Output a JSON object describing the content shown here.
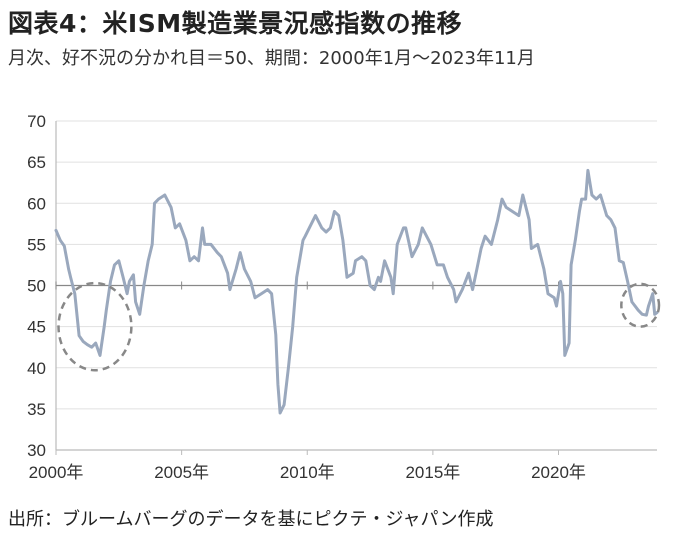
{
  "title": "図表4：米ISM製造業景況感指数の推移",
  "subtitle": "月次、好不況の分かれ目＝50、期間：2000年1月～2023年11月",
  "source": "出所：ブルームバーグのデータを基にピクテ・ジャパン作成",
  "colors": {
    "line": "#9aa8bd",
    "circle": "#888888",
    "axis": "#bbbbbb",
    "grid": "#e1e1e1"
  },
  "chart_data": {
    "type": "line",
    "ylim": [
      30,
      70
    ],
    "yticks": [
      30,
      35,
      40,
      45,
      50,
      55,
      60,
      65,
      70
    ],
    "xlim": [
      2000.0,
      2023.92
    ],
    "xticks": [
      {
        "value": 2000,
        "label": "2000年"
      },
      {
        "value": 2005,
        "label": "2005年"
      },
      {
        "value": 2010,
        "label": "2010年"
      },
      {
        "value": 2015,
        "label": "2015年"
      },
      {
        "value": 2020,
        "label": "2020年"
      }
    ],
    "reference_line": 50,
    "highlight_regions": [
      {
        "x_range": [
          2000.1,
          2003.0
        ],
        "y_range": [
          39.7,
          50.3
        ]
      },
      {
        "x_range": [
          2022.5,
          2024.0
        ],
        "y_range": [
          45.0,
          50.2
        ]
      }
    ],
    "series": [
      {
        "points": [
          [
            2000.0,
            56.7
          ],
          [
            2000.17,
            55.5
          ],
          [
            2000.33,
            54.8
          ],
          [
            2000.5,
            52.0
          ],
          [
            2000.58,
            51.0
          ],
          [
            2000.75,
            49.0
          ],
          [
            2000.92,
            43.9
          ],
          [
            2001.08,
            43.2
          ],
          [
            2001.25,
            42.8
          ],
          [
            2001.42,
            42.5
          ],
          [
            2001.58,
            43.0
          ],
          [
            2001.75,
            41.5
          ],
          [
            2001.92,
            45.0
          ],
          [
            2002.0,
            47.0
          ],
          [
            2002.17,
            50.5
          ],
          [
            2002.33,
            52.5
          ],
          [
            2002.5,
            53.0
          ],
          [
            2002.67,
            51.0
          ],
          [
            2002.83,
            49.0
          ],
          [
            2002.92,
            50.5
          ],
          [
            2003.08,
            51.3
          ],
          [
            2003.17,
            48.0
          ],
          [
            2003.33,
            46.5
          ],
          [
            2003.5,
            50.0
          ],
          [
            2003.67,
            53.0
          ],
          [
            2003.83,
            55.0
          ],
          [
            2003.92,
            60.0
          ],
          [
            2004.08,
            60.5
          ],
          [
            2004.33,
            61.0
          ],
          [
            2004.58,
            59.5
          ],
          [
            2004.75,
            57.0
          ],
          [
            2004.92,
            57.5
          ],
          [
            2005.17,
            55.5
          ],
          [
            2005.33,
            53.0
          ],
          [
            2005.5,
            53.5
          ],
          [
            2005.67,
            53.0
          ],
          [
            2005.83,
            57.0
          ],
          [
            2005.92,
            55.0
          ],
          [
            2006.17,
            55.0
          ],
          [
            2006.42,
            54.0
          ],
          [
            2006.58,
            53.5
          ],
          [
            2006.83,
            51.5
          ],
          [
            2006.92,
            49.5
          ],
          [
            2007.17,
            52.0
          ],
          [
            2007.33,
            54.0
          ],
          [
            2007.5,
            52.0
          ],
          [
            2007.75,
            50.5
          ],
          [
            2007.92,
            48.5
          ],
          [
            2008.17,
            49.0
          ],
          [
            2008.42,
            49.5
          ],
          [
            2008.58,
            49.0
          ],
          [
            2008.75,
            44.0
          ],
          [
            2008.83,
            38.0
          ],
          [
            2008.92,
            34.5
          ],
          [
            2009.08,
            35.5
          ],
          [
            2009.25,
            40.0
          ],
          [
            2009.42,
            45.0
          ],
          [
            2009.58,
            51.0
          ],
          [
            2009.83,
            55.5
          ],
          [
            2009.92,
            56.0
          ],
          [
            2010.08,
            57.0
          ],
          [
            2010.33,
            58.5
          ],
          [
            2010.58,
            57.0
          ],
          [
            2010.75,
            56.5
          ],
          [
            2010.92,
            57.0
          ],
          [
            2011.08,
            59.0
          ],
          [
            2011.25,
            58.5
          ],
          [
            2011.42,
            55.5
          ],
          [
            2011.58,
            51.0
          ],
          [
            2011.83,
            51.5
          ],
          [
            2011.92,
            53.0
          ],
          [
            2012.17,
            53.5
          ],
          [
            2012.33,
            53.0
          ],
          [
            2012.5,
            50.0
          ],
          [
            2012.67,
            49.5
          ],
          [
            2012.83,
            51.0
          ],
          [
            2012.92,
            50.5
          ],
          [
            2013.08,
            53.0
          ],
          [
            2013.33,
            51.0
          ],
          [
            2013.42,
            49.0
          ],
          [
            2013.58,
            55.0
          ],
          [
            2013.83,
            57.0
          ],
          [
            2013.92,
            57.0
          ],
          [
            2014.17,
            53.5
          ],
          [
            2014.42,
            55.0
          ],
          [
            2014.58,
            57.0
          ],
          [
            2014.75,
            56.0
          ],
          [
            2014.92,
            55.0
          ],
          [
            2015.17,
            52.5
          ],
          [
            2015.42,
            52.5
          ],
          [
            2015.58,
            51.0
          ],
          [
            2015.83,
            49.5
          ],
          [
            2015.92,
            48.0
          ],
          [
            2016.17,
            49.5
          ],
          [
            2016.42,
            51.5
          ],
          [
            2016.58,
            49.5
          ],
          [
            2016.75,
            52.0
          ],
          [
            2016.92,
            54.5
          ],
          [
            2017.08,
            56.0
          ],
          [
            2017.33,
            55.0
          ],
          [
            2017.58,
            58.0
          ],
          [
            2017.75,
            60.5
          ],
          [
            2017.92,
            59.5
          ],
          [
            2018.17,
            59.0
          ],
          [
            2018.42,
            58.5
          ],
          [
            2018.58,
            61.0
          ],
          [
            2018.83,
            58.0
          ],
          [
            2018.92,
            54.5
          ],
          [
            2019.17,
            55.0
          ],
          [
            2019.42,
            52.0
          ],
          [
            2019.58,
            49.0
          ],
          [
            2019.83,
            48.5
          ],
          [
            2019.92,
            47.5
          ],
          [
            2020.08,
            50.5
          ],
          [
            2020.17,
            49.0
          ],
          [
            2020.25,
            41.5
          ],
          [
            2020.42,
            43.0
          ],
          [
            2020.5,
            52.5
          ],
          [
            2020.67,
            55.5
          ],
          [
            2020.83,
            59.0
          ],
          [
            2020.92,
            60.5
          ],
          [
            2021.08,
            60.5
          ],
          [
            2021.17,
            64.0
          ],
          [
            2021.33,
            61.0
          ],
          [
            2021.5,
            60.5
          ],
          [
            2021.67,
            61.0
          ],
          [
            2021.92,
            58.5
          ],
          [
            2022.08,
            58.0
          ],
          [
            2022.25,
            57.0
          ],
          [
            2022.42,
            53.0
          ],
          [
            2022.58,
            52.8
          ],
          [
            2022.75,
            50.5
          ],
          [
            2022.92,
            48.0
          ],
          [
            2023.17,
            47.0
          ],
          [
            2023.33,
            46.5
          ],
          [
            2023.5,
            46.4
          ],
          [
            2023.58,
            47.5
          ],
          [
            2023.75,
            49.0
          ],
          [
            2023.83,
            46.5
          ],
          [
            2023.92,
            46.7
          ]
        ]
      }
    ]
  }
}
